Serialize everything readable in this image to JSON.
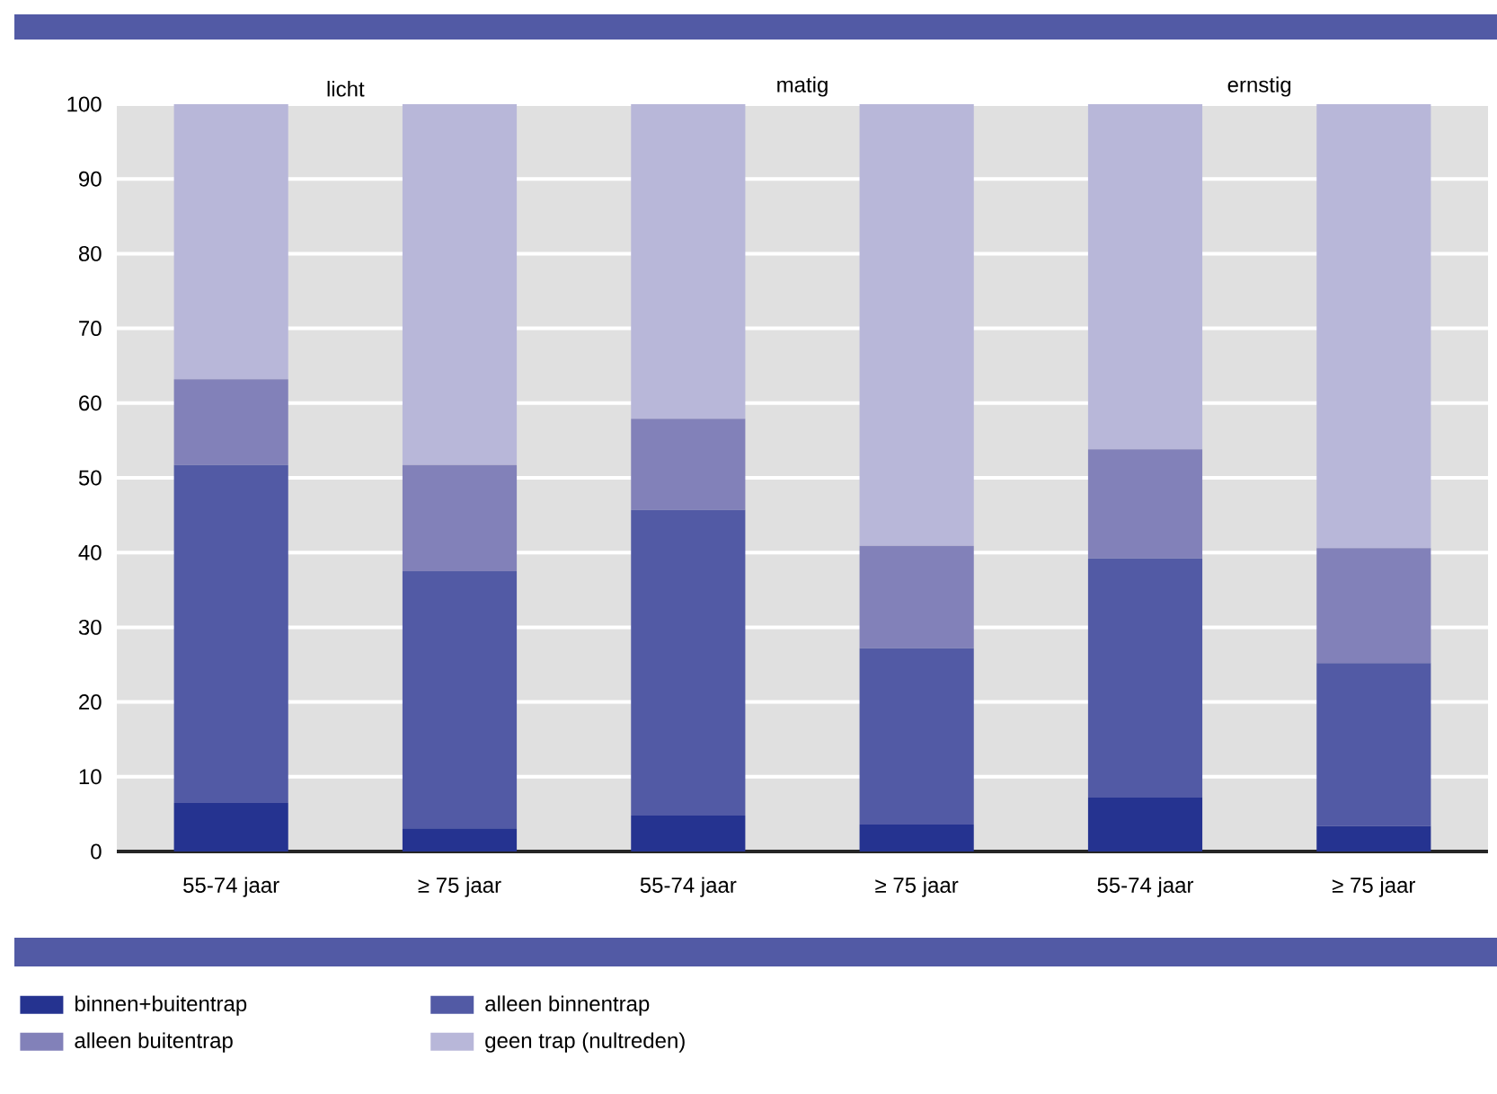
{
  "chart_data": {
    "type": "bar",
    "stacked": true,
    "categories": [
      "55-74 jaar",
      "≥ 75 jaar",
      "55-74 jaar",
      "≥ 75 jaar",
      "55-74 jaar",
      "≥ 75 jaar"
    ],
    "series": [
      {
        "name": "binnen+buitentrap",
        "color": "#253390",
        "values": [
          6.5,
          3.1,
          4.8,
          3.6,
          7.2,
          3.4
        ]
      },
      {
        "name": "alleen binnentrap",
        "color": "#525aa5",
        "values": [
          45.2,
          34.4,
          40.9,
          23.6,
          32.0,
          21.8
        ]
      },
      {
        "name": "alleen buitentrap",
        "color": "#8281b9",
        "values": [
          11.5,
          14.2,
          12.2,
          13.7,
          14.6,
          15.4
        ]
      },
      {
        "name": "geen trap (nultreden)",
        "color": "#b8b7d9",
        "values": [
          36.8,
          48.3,
          42.1,
          59.1,
          46.2,
          59.4
        ]
      }
    ],
    "ylim": [
      0,
      100
    ],
    "yticks": [
      0,
      10,
      20,
      30,
      40,
      50,
      60,
      70,
      80,
      90,
      100
    ],
    "grid": "y",
    "legend": "bottom",
    "annotations": [
      "licht",
      "matig",
      "ernstig"
    ]
  }
}
